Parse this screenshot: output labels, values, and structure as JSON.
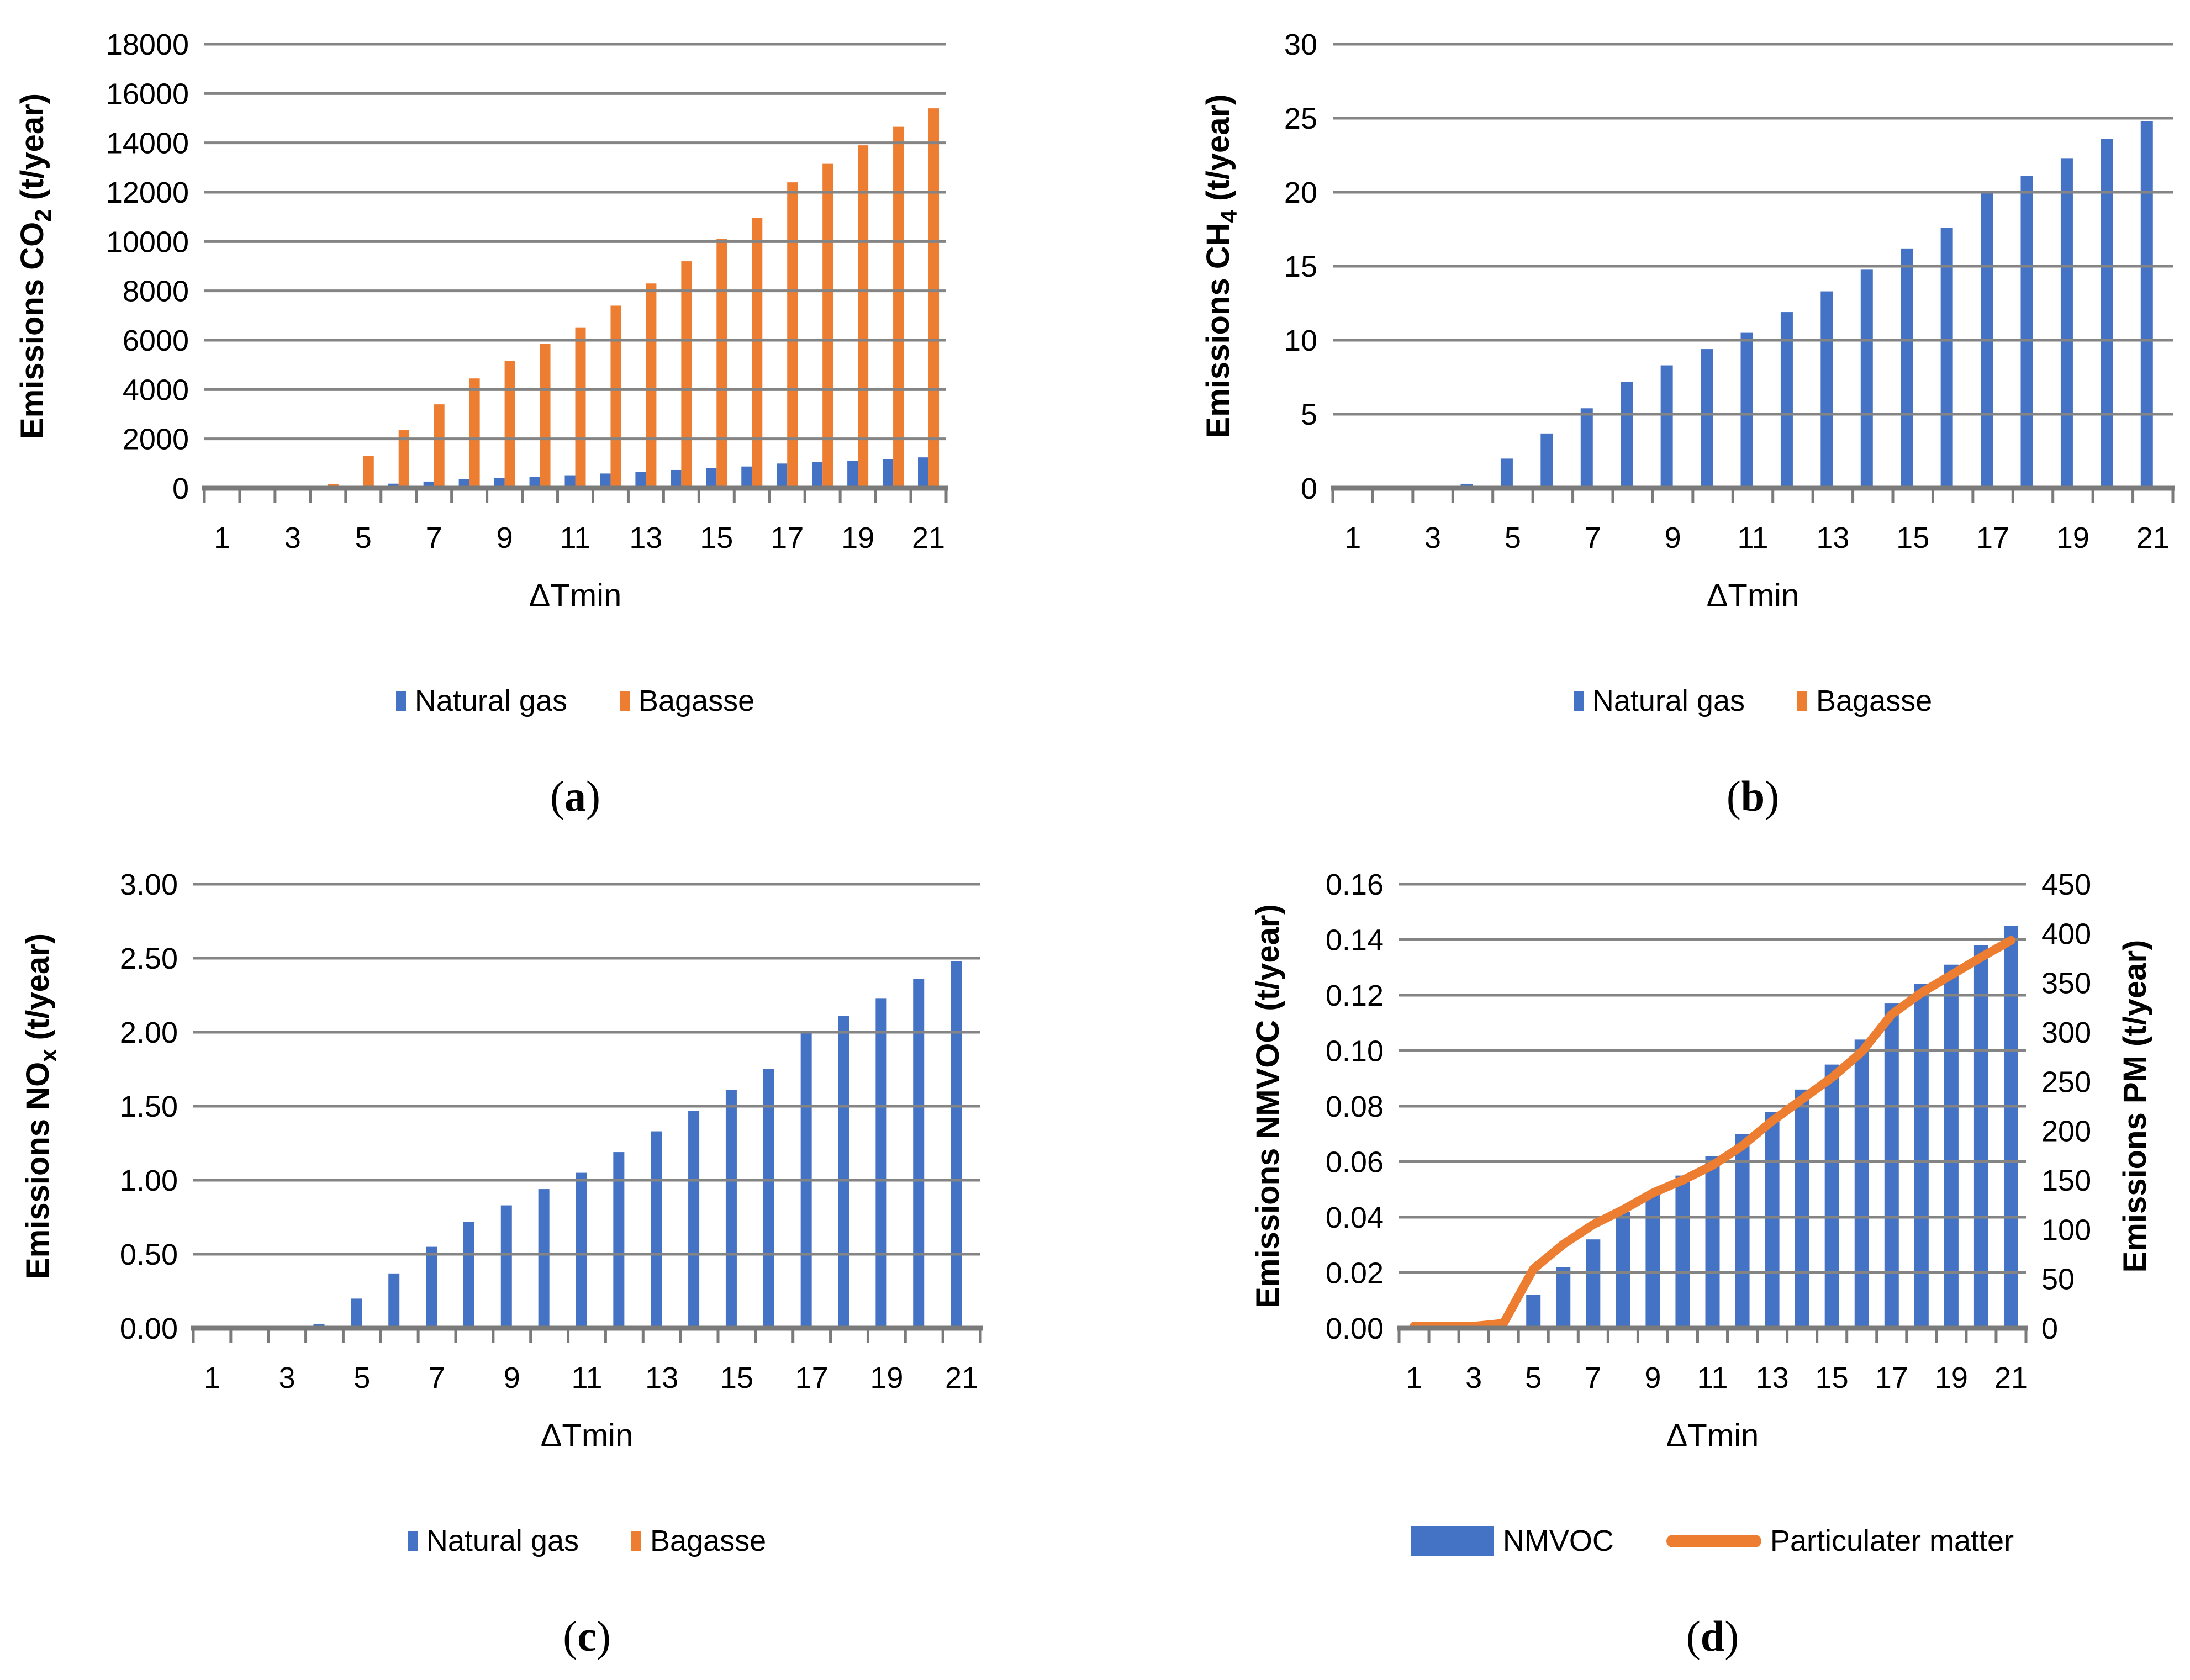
{
  "colors": {
    "blue": "#4472C4",
    "orange": "#ED7D31",
    "gridline": "#848484",
    "axis": "#7a7a7a",
    "text": "#000000",
    "background": "#ffffff"
  },
  "chart_data": [
    {
      "type": "bar",
      "panel_label": {
        "open": "(",
        "letter": "a",
        "close": ")"
      },
      "xlabel": "ΔTmin",
      "ylabel_segments": [
        {
          "text": "Emissions CO"
        },
        {
          "text": "2",
          "sub": true
        },
        {
          "text": " (t/year)"
        }
      ],
      "x": [
        1,
        2,
        3,
        4,
        5,
        6,
        7,
        8,
        9,
        10,
        11,
        12,
        13,
        14,
        15,
        16,
        17,
        18,
        19,
        20,
        21
      ],
      "x_tick_labels": [
        "1",
        "3",
        "5",
        "7",
        "9",
        "11",
        "13",
        "15",
        "17",
        "19",
        "21"
      ],
      "ylim": [
        0,
        18000
      ],
      "y_tick_labels": [
        "0",
        "2000",
        "4000",
        "6000",
        "8000",
        "10000",
        "12000",
        "14000",
        "16000",
        "18000"
      ],
      "grid": true,
      "legend_position": "bottom",
      "series": [
        {
          "name": "Natural gas",
          "type": "bar",
          "color_key": "blue",
          "values": [
            0,
            0,
            0,
            15,
            100,
            185,
            270,
            360,
            415,
            470,
            525,
            595,
            665,
            740,
            810,
            880,
            1000,
            1060,
            1120,
            1185,
            1250
          ]
        },
        {
          "name": "Bagasse",
          "type": "bar",
          "color_key": "orange",
          "values": [
            0,
            0,
            0,
            180,
            1300,
            2350,
            3400,
            4450,
            5150,
            5850,
            6500,
            7400,
            8300,
            9200,
            10100,
            10950,
            12400,
            13150,
            13900,
            14650,
            15400
          ]
        }
      ],
      "legend": [
        {
          "label": "Natural gas",
          "swatch": "bar-small",
          "color_key": "blue"
        },
        {
          "label": "Bagasse",
          "swatch": "bar-small",
          "color_key": "orange"
        }
      ]
    },
    {
      "type": "bar",
      "panel_label": {
        "open": "(",
        "letter": "b",
        "close": ")"
      },
      "xlabel": "ΔTmin",
      "ylabel_segments": [
        {
          "text": "Emissions CH"
        },
        {
          "text": "4",
          "sub": true
        },
        {
          "text": " (t/year)"
        }
      ],
      "x": [
        1,
        2,
        3,
        4,
        5,
        6,
        7,
        8,
        9,
        10,
        11,
        12,
        13,
        14,
        15,
        16,
        17,
        18,
        19,
        20,
        21
      ],
      "x_tick_labels": [
        "1",
        "3",
        "5",
        "7",
        "9",
        "11",
        "13",
        "15",
        "17",
        "19",
        "21"
      ],
      "ylim": [
        0,
        30
      ],
      "y_tick_labels": [
        "0",
        "5",
        "10",
        "15",
        "20",
        "25",
        "30"
      ],
      "grid": true,
      "legend_position": "bottom",
      "series": [
        {
          "name": "Natural gas",
          "type": "bar",
          "color_key": "blue",
          "values": [
            0,
            0,
            0,
            0.3,
            2,
            3.7,
            5.4,
            7.2,
            8.3,
            9.4,
            10.5,
            11.9,
            13.3,
            14.8,
            16.2,
            17.6,
            20,
            21.1,
            22.3,
            23.6,
            24.8
          ]
        },
        {
          "name": "Bagasse",
          "type": "bar",
          "color_key": "orange",
          "values": [
            0,
            0,
            0,
            0,
            0,
            0,
            0,
            0,
            0,
            0,
            0,
            0,
            0,
            0,
            0,
            0,
            0,
            0,
            0,
            0,
            0
          ]
        }
      ],
      "legend": [
        {
          "label": "Natural gas",
          "swatch": "bar-small",
          "color_key": "blue"
        },
        {
          "label": "Bagasse",
          "swatch": "bar-small",
          "color_key": "orange"
        }
      ]
    },
    {
      "type": "bar",
      "panel_label": {
        "open": "(",
        "letter": "c",
        "close": ")"
      },
      "xlabel": "ΔTmin",
      "ylabel_segments": [
        {
          "text": "Emissions NO"
        },
        {
          "text": "x",
          "sub": true
        },
        {
          "text": " (t/year)"
        }
      ],
      "x": [
        1,
        2,
        3,
        4,
        5,
        6,
        7,
        8,
        9,
        10,
        11,
        12,
        13,
        14,
        15,
        16,
        17,
        18,
        19,
        20,
        21
      ],
      "x_tick_labels": [
        "1",
        "3",
        "5",
        "7",
        "9",
        "11",
        "13",
        "15",
        "17",
        "19",
        "21"
      ],
      "ylim": [
        0,
        3
      ],
      "y_tick_labels": [
        "0.00",
        "0.50",
        "1.00",
        "1.50",
        "2.00",
        "2.50",
        "3.00"
      ],
      "grid": true,
      "legend_position": "bottom",
      "series": [
        {
          "name": "Natural gas",
          "type": "bar",
          "color_key": "blue",
          "values": [
            0,
            0,
            0,
            0.03,
            0.2,
            0.37,
            0.55,
            0.72,
            0.83,
            0.94,
            1.05,
            1.19,
            1.33,
            1.47,
            1.61,
            1.75,
            2,
            2.11,
            2.23,
            2.36,
            2.48
          ]
        },
        {
          "name": "Bagasse",
          "type": "bar",
          "color_key": "orange",
          "values": [
            0,
            0,
            0,
            0,
            0,
            0,
            0,
            0,
            0,
            0,
            0,
            0,
            0,
            0,
            0,
            0,
            0,
            0,
            0,
            0,
            0
          ]
        }
      ],
      "legend": [
        {
          "label": "Natural gas",
          "swatch": "bar-small",
          "color_key": "blue"
        },
        {
          "label": "Bagasse",
          "swatch": "bar-small",
          "color_key": "orange"
        }
      ]
    },
    {
      "type": "bar-line-dual-axis",
      "panel_label": {
        "open": "(",
        "letter": "d",
        "close": ")"
      },
      "xlabel": "ΔTmin",
      "ylabel_segments": [
        {
          "text": "Emissions NMVOC (t/year)"
        }
      ],
      "y2label_segments": [
        {
          "text": "Emissions PM (t/year)"
        }
      ],
      "x": [
        1,
        2,
        3,
        4,
        5,
        6,
        7,
        8,
        9,
        10,
        11,
        12,
        13,
        14,
        15,
        16,
        17,
        18,
        19,
        20,
        21
      ],
      "x_tick_labels": [
        "1",
        "3",
        "5",
        "7",
        "9",
        "11",
        "13",
        "15",
        "17",
        "19",
        "21"
      ],
      "ylim": [
        0,
        0.16
      ],
      "y_tick_labels": [
        "0.00",
        "0.02",
        "0.04",
        "0.06",
        "0.08",
        "0.10",
        "0.12",
        "0.14",
        "0.16"
      ],
      "y2lim": [
        0,
        450
      ],
      "y2_tick_labels": [
        "0",
        "50",
        "100",
        "150",
        "200",
        "250",
        "300",
        "350",
        "400",
        "450"
      ],
      "grid": true,
      "legend_position": "bottom",
      "series": [
        {
          "name": "NMVOC",
          "type": "bar",
          "axis": "left",
          "color_key": "blue",
          "values": [
            0,
            0,
            0,
            0,
            0.012,
            0.022,
            0.032,
            0.042,
            0.048,
            0.055,
            0.062,
            0.07,
            0.078,
            0.086,
            0.095,
            0.104,
            0.117,
            0.124,
            0.131,
            0.138,
            0.145
          ]
        },
        {
          "name": "Particulater matter",
          "type": "line",
          "axis": "right",
          "color_key": "orange",
          "values": [
            2,
            2,
            2,
            5,
            60,
            85,
            105,
            120,
            137,
            150,
            165,
            185,
            210,
            232,
            254,
            280,
            318,
            340,
            358,
            376,
            393
          ]
        }
      ],
      "legend": [
        {
          "label": "NMVOC",
          "swatch": "bar-wide",
          "color_key": "blue"
        },
        {
          "label": "Particulater matter",
          "swatch": "line",
          "color_key": "orange"
        }
      ]
    }
  ]
}
